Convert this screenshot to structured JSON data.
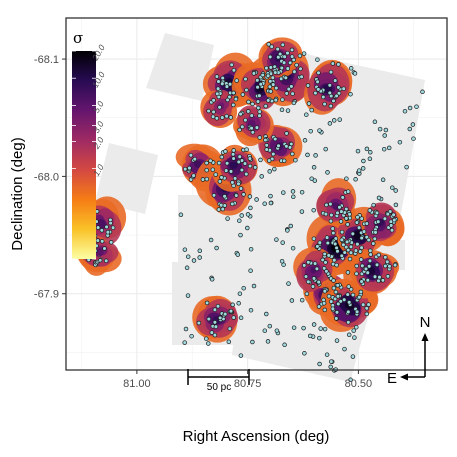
{
  "chart_data": {
    "type": "scatter",
    "title": "",
    "xlabel": "Right Ascension (deg)",
    "ylabel": "Declination (deg)",
    "x_reversed": true,
    "xlim": [
      81.16,
      80.3
    ],
    "ylim": [
      -68.135,
      -67.835
    ],
    "x_ticks": [
      {
        "value": 81.0,
        "label": "81.00"
      },
      {
        "value": 80.75,
        "label": "80.75"
      },
      {
        "value": 80.5,
        "label": "80.50"
      }
    ],
    "y_ticks": [
      {
        "value": -67.9,
        "label": "-67.9"
      },
      {
        "value": -68.0,
        "label": "-68.0"
      },
      {
        "value": -68.1,
        "label": "-68.1"
      }
    ],
    "grid": true,
    "colorbar": {
      "title": "σ",
      "scale": "log",
      "range": [
        0.1,
        20.0
      ],
      "ticks": [
        "0.1",
        "1.0",
        "2.0",
        "3.0",
        "5.0",
        "10.0",
        "20.0"
      ],
      "colors": [
        "#fcffa4",
        "#fac228",
        "#f57d15",
        "#d44842",
        "#9f2a63",
        "#65156e",
        "#280b53",
        "#000004"
      ]
    },
    "footprint_color": "#ebebeb",
    "source_marker_color": "#9fd8de",
    "scale_bar_label": "50 pc",
    "compass": {
      "north": "N",
      "east": "E"
    },
    "density_clumps": [
      {
        "ra": 80.82,
        "dec": -67.878,
        "sigma": 8
      },
      {
        "ra": 81.08,
        "dec": -67.96,
        "sigma": 6
      },
      {
        "ra": 81.085,
        "dec": -67.935,
        "sigma": 5
      },
      {
        "ra": 80.57,
        "dec": -67.9,
        "sigma": 10
      },
      {
        "ra": 80.52,
        "dec": -67.89,
        "sigma": 15
      },
      {
        "ra": 80.55,
        "dec": -67.94,
        "sigma": 18
      },
      {
        "ra": 80.5,
        "dec": -67.95,
        "sigma": 15
      },
      {
        "ra": 80.47,
        "dec": -67.92,
        "sigma": 12
      },
      {
        "ra": 80.6,
        "dec": -67.92,
        "sigma": 6
      },
      {
        "ra": 80.45,
        "dec": -67.96,
        "sigma": 8
      },
      {
        "ra": 80.55,
        "dec": -67.975,
        "sigma": 6
      },
      {
        "ra": 80.86,
        "dec": -68.01,
        "sigma": 7
      },
      {
        "ra": 80.8,
        "dec": -67.99,
        "sigma": 10
      },
      {
        "ra": 80.78,
        "dec": -68.01,
        "sigma": 9
      },
      {
        "ra": 80.68,
        "dec": -68.025,
        "sigma": 7
      },
      {
        "ra": 80.79,
        "dec": -68.08,
        "sigma": 12
      },
      {
        "ra": 80.72,
        "dec": -68.075,
        "sigma": 14
      },
      {
        "ra": 80.66,
        "dec": -68.085,
        "sigma": 10
      },
      {
        "ra": 80.68,
        "dec": -68.1,
        "sigma": 9
      },
      {
        "ra": 80.57,
        "dec": -68.075,
        "sigma": 10
      },
      {
        "ra": 80.74,
        "dec": -68.045,
        "sigma": 5
      },
      {
        "ra": 80.81,
        "dec": -68.06,
        "sigma": 4
      }
    ]
  }
}
